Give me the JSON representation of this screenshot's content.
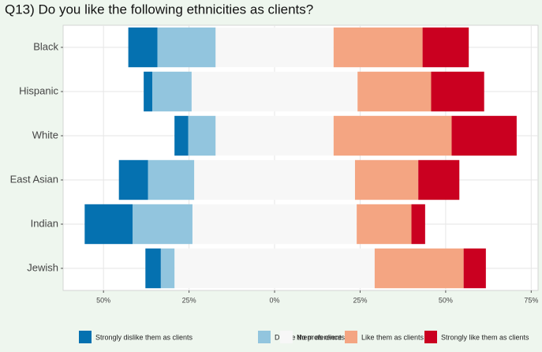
{
  "chart_data": {
    "type": "diverging_bar",
    "title": "Q13) Do you like the following ethnicities as clients?",
    "categories": [
      "Black",
      "Hispanic",
      "White",
      "East Asian",
      "Indian",
      "Jewish"
    ],
    "series": [
      {
        "name": "Strongly dislike them as clients",
        "color": "#0571b0",
        "values": [
          8.5,
          2.5,
          4,
          8.5,
          14,
          4.5
        ]
      },
      {
        "name": "Dislike them as clients",
        "color": "#92c5de",
        "values": [
          17,
          11.5,
          8,
          13.5,
          17.5,
          4
        ]
      },
      {
        "name": "No preference",
        "color": "#f7f7f7",
        "values": [
          34.5,
          48.5,
          34.5,
          47,
          48,
          58.5
        ]
      },
      {
        "name": "Like them as clients",
        "color": "#f4a582",
        "values": [
          26,
          21.5,
          34.5,
          18.5,
          16,
          26
        ]
      },
      {
        "name": "Strongly like them as clients",
        "color": "#ca0020",
        "values": [
          13.5,
          15.5,
          19,
          12,
          4,
          6.5
        ]
      }
    ],
    "xlim": [
      -61.8,
      77
    ],
    "xticks": [
      {
        "value": -50,
        "label": "50%"
      },
      {
        "value": -25,
        "label": "25%"
      },
      {
        "value": 0,
        "label": "0%"
      },
      {
        "value": 25,
        "label": "25%"
      },
      {
        "value": 50,
        "label": "50%"
      },
      {
        "value": 75,
        "label": "75%"
      }
    ],
    "grid": true,
    "legend": "bottom"
  }
}
